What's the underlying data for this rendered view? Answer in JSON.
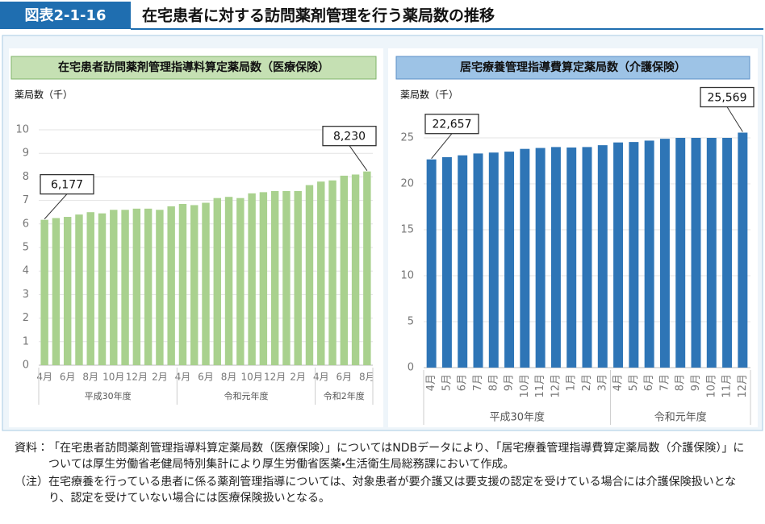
{
  "header": {
    "figure_no": "図表2-1-16",
    "title": "在宅患者に対する訪問薬剤管理を行う薬局数の推移"
  },
  "chart_data": [
    {
      "type": "bar",
      "title": "在宅患者訪問薬剤管理指導料算定薬局数（医療保険）",
      "y_label": "薬局数（千）",
      "categories": [
        "4月",
        null,
        "6月",
        null,
        "8月",
        null,
        "10月",
        null,
        "12月",
        null,
        "2月",
        null,
        "4月",
        null,
        "6月",
        null,
        "8月",
        null,
        "10月",
        null,
        "12月",
        null,
        "2月",
        null,
        "4月",
        null,
        "6月",
        null,
        "8月"
      ],
      "groups": [
        {
          "label": "平成30年度",
          "span": 12
        },
        {
          "label": "令和元年度",
          "span": 12
        },
        {
          "label": "令和2年度",
          "span": 5
        }
      ],
      "values": [
        6.177,
        6.25,
        6.3,
        6.4,
        6.5,
        6.45,
        6.6,
        6.6,
        6.65,
        6.65,
        6.6,
        6.75,
        6.85,
        6.8,
        6.9,
        7.1,
        7.15,
        7.1,
        7.3,
        7.35,
        7.4,
        7.4,
        7.4,
        7.65,
        7.8,
        7.85,
        8.05,
        8.1,
        8.23
      ],
      "value_labels": [
        "6,177",
        null,
        null,
        null,
        null,
        null,
        null,
        null,
        null,
        null,
        null,
        null,
        null,
        null,
        null,
        null,
        null,
        null,
        null,
        null,
        null,
        null,
        null,
        null,
        null,
        null,
        null,
        null,
        "8,230"
      ],
      "color": "#a9d18e",
      "title_color": "#c5e0b3",
      "ylim": [
        0,
        10
      ],
      "yticks": [
        0,
        1,
        2,
        3,
        4,
        5,
        6,
        7,
        8,
        9,
        10
      ],
      "grid": true,
      "x_label_rotate": false
    },
    {
      "type": "bar",
      "title": "居宅療養管理指導費算定薬局数（介護保険）",
      "y_label": "薬局数（千）",
      "categories": [
        "4月",
        "5月",
        "6月",
        "7月",
        "8月",
        "9月",
        "10月",
        "11月",
        "12月",
        "1月",
        "2月",
        "3月",
        "4月",
        "5月",
        "6月",
        "7月",
        "8月",
        "9月",
        "10月",
        "11月",
        "12月"
      ],
      "groups": [
        {
          "label": "平成30年度",
          "span": 12
        },
        {
          "label": "令和元年度",
          "span": 9
        }
      ],
      "values": [
        22.657,
        22.9,
        23.1,
        23.3,
        23.4,
        23.5,
        23.8,
        23.9,
        24.0,
        23.95,
        24.0,
        24.2,
        24.5,
        24.55,
        24.7,
        24.9,
        25.0,
        25.0,
        25.0,
        25.0,
        25.569
      ],
      "value_labels": [
        "22,657",
        null,
        null,
        null,
        null,
        null,
        null,
        null,
        null,
        null,
        null,
        null,
        null,
        null,
        null,
        null,
        null,
        null,
        null,
        null,
        "25,569"
      ],
      "color": "#2e75b6",
      "title_color": "#9dc3e6",
      "ylim": [
        0,
        26
      ],
      "yticks": [
        0,
        5,
        10,
        15,
        20,
        25
      ],
      "grid": true,
      "x_label_rotate": true
    }
  ],
  "notes": [
    {
      "label": "資料：",
      "text": "「在宅患者訪問薬剤管理指導料算定薬局数（医療保険）」についてはNDBデータにより、「居宅療養管理指導費算定薬局数（介護保険）」については厚生労働省老健局特別集計により厚生労働省医薬・生活衛生局総務課において作成。"
    },
    {
      "label": "（注）",
      "text": "在宅療養を行っている患者に係る薬剤管理指導については、対象患者が要介護又は要支援の認定を受けている場合には介護保険扱いとなり、認定を受けていない場合には医療保険扱いとなる。"
    }
  ]
}
